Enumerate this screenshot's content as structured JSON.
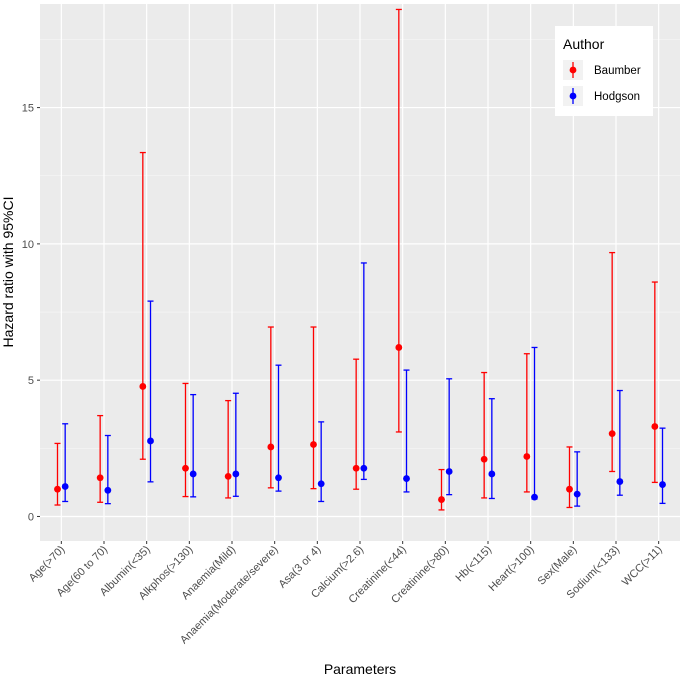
{
  "chart_data": {
    "type": "scatter",
    "subtype": "point-with-error-bars",
    "title": "",
    "xlabel": "Parameters",
    "ylabel": "Hazard ratio with 95%CI",
    "ylim": [
      -0.9,
      18.8
    ],
    "yticks": [
      0,
      5,
      10,
      15
    ],
    "grid": true,
    "legend": {
      "title": "Author",
      "placement": "top-right"
    },
    "categories": [
      "Age(>70)",
      "Age(60 to 70)",
      "Albumin(<35)",
      "Alkphos(>130)",
      "Anaemia(Mild)",
      "Anaemia(Moderate/severe)",
      "Asa(3 or 4)",
      "Calcium(>2.6)",
      "Creatinine(<44)",
      "Creatinine(>80)",
      "Hb(<115)",
      "Heart(>100)",
      "Sex(Male)",
      "Sodium(<133)",
      "WCC(>11)"
    ],
    "series": [
      {
        "name": "Baumber",
        "color": "#ff0000",
        "values": [
          1.0,
          1.42,
          4.77,
          1.77,
          1.47,
          2.55,
          2.64,
          1.77,
          6.2,
          0.62,
          2.1,
          2.2,
          1.0,
          3.04,
          3.3
        ],
        "lower": [
          0.42,
          0.52,
          2.1,
          0.73,
          0.68,
          1.05,
          1.02,
          1.0,
          3.1,
          0.24,
          0.68,
          0.9,
          0.33,
          1.65,
          1.25
        ],
        "upper": [
          2.68,
          3.7,
          13.35,
          4.88,
          4.25,
          6.95,
          6.95,
          5.77,
          18.6,
          1.72,
          5.28,
          5.97,
          2.55,
          9.68,
          8.6
        ]
      },
      {
        "name": "Hodgson",
        "color": "#0000ff",
        "values": [
          1.1,
          0.96,
          2.77,
          1.56,
          1.56,
          1.42,
          1.2,
          1.77,
          1.39,
          1.65,
          1.56,
          0.71,
          0.82,
          1.28,
          1.17
        ],
        "lower": [
          0.55,
          0.47,
          1.27,
          0.72,
          0.74,
          0.93,
          0.55,
          1.36,
          0.9,
          0.8,
          0.66,
          0.64,
          0.38,
          0.78,
          0.48
        ],
        "upper": [
          3.4,
          2.97,
          7.9,
          4.47,
          4.52,
          5.55,
          3.47,
          9.3,
          5.37,
          5.05,
          4.32,
          6.2,
          2.37,
          4.62,
          3.24
        ]
      }
    ]
  }
}
